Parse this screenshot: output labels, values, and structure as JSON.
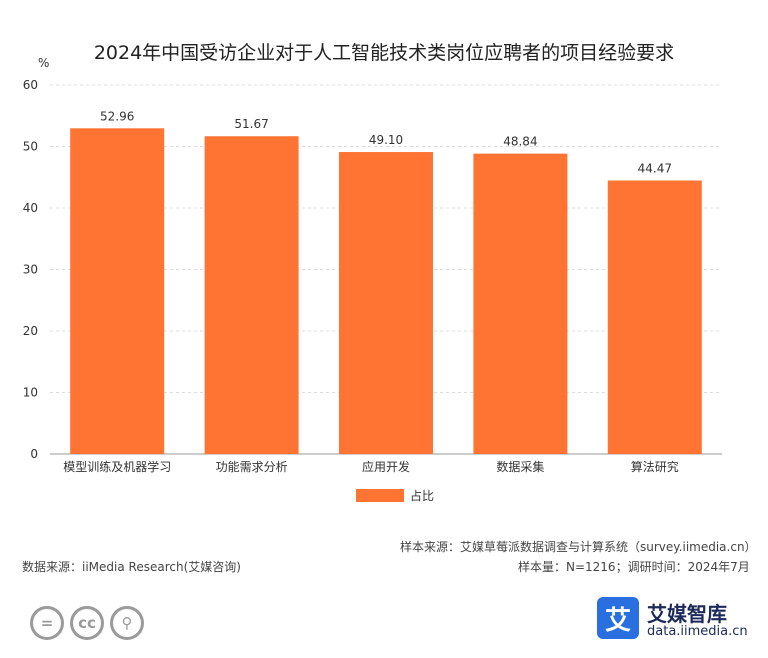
{
  "header": {
    "unit": "%"
  },
  "legend": {
    "label": "占比"
  },
  "footer": {
    "sample_source": "样本来源：艾媒草莓派数据调查与计算系统（survey.iimedia.cn）",
    "data_source": "数据来源：iiMedia Research(艾媒咨询)",
    "sample_info": "样本量：N=1216；调研时间：2024年7月"
  },
  "brand": {
    "icon_char": "艾",
    "name": "艾媒智库",
    "url": "data.iimedia.cn"
  },
  "license_icons": [
    {
      "name": "equal-icon",
      "glyph": "="
    },
    {
      "name": "cc-icon",
      "glyph": "cc"
    },
    {
      "name": "person-icon",
      "glyph": "⚲"
    }
  ],
  "colors": {
    "bar": "#ff7433",
    "grid": "#dddddd",
    "axis": "#999999"
  },
  "chart_data": {
    "type": "bar",
    "title": "2024年中国受访企业对于人工智能技术类岗位应聘者的项目经验要求",
    "ylabel": "%",
    "categories": [
      "模型训练及机器学习",
      "功能需求分析",
      "应用开发",
      "数据采集",
      "算法研究"
    ],
    "series": [
      {
        "name": "占比",
        "values": [
          52.96,
          51.67,
          49.1,
          48.84,
          44.47
        ]
      }
    ],
    "value_labels": [
      "52.96",
      "51.67",
      "49.10",
      "48.84",
      "44.47"
    ],
    "ylim": [
      0,
      60
    ],
    "yticks": [
      0,
      10,
      20,
      30,
      40,
      50,
      60
    ],
    "grid": true,
    "legend_position": "bottom"
  }
}
